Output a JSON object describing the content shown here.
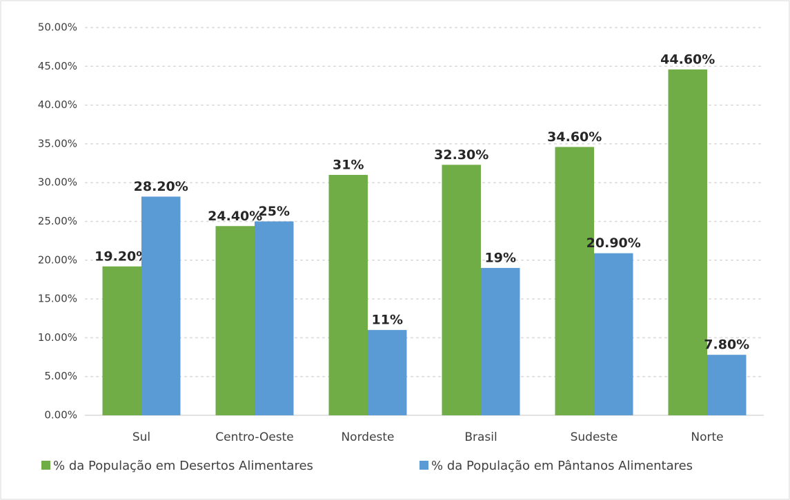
{
  "chart_data": {
    "type": "bar",
    "categories": [
      "Sul",
      "Centro-Oeste",
      "Nordeste",
      "Brasil",
      "Sudeste",
      "Norte"
    ],
    "series": [
      {
        "name": "% da População em Desertos Alimentares",
        "color": "#70ad47",
        "values": [
          19.2,
          24.4,
          31,
          32.3,
          34.6,
          44.6
        ],
        "value_labels": [
          "19.20%",
          "24.40%",
          "31%",
          "32.30%",
          "34.60%",
          "44.60%"
        ]
      },
      {
        "name": "% da População em Pântanos Alimentares",
        "color": "#5b9bd5",
        "values": [
          28.2,
          25,
          11,
          19,
          20.9,
          7.8
        ],
        "value_labels": [
          "28.20%",
          "25%",
          "11%",
          "19%",
          "20.90%",
          "7.80%"
        ]
      }
    ],
    "ylim": [
      0,
      50
    ],
    "yticks": [
      {
        "value": 0,
        "label": "0.00%"
      },
      {
        "value": 5,
        "label": "5.00%"
      },
      {
        "value": 10,
        "label": "10.00%"
      },
      {
        "value": 15,
        "label": "15.00%"
      },
      {
        "value": 20,
        "label": "20.00%"
      },
      {
        "value": 25,
        "label": "25.00%"
      },
      {
        "value": 30,
        "label": "30.00%"
      },
      {
        "value": 35,
        "label": "35.00%"
      },
      {
        "value": 40,
        "label": "40.00%"
      },
      {
        "value": 45,
        "label": "45.00%"
      },
      {
        "value": 50,
        "label": "50.00%"
      }
    ],
    "grid": true,
    "legend": "bottom"
  }
}
